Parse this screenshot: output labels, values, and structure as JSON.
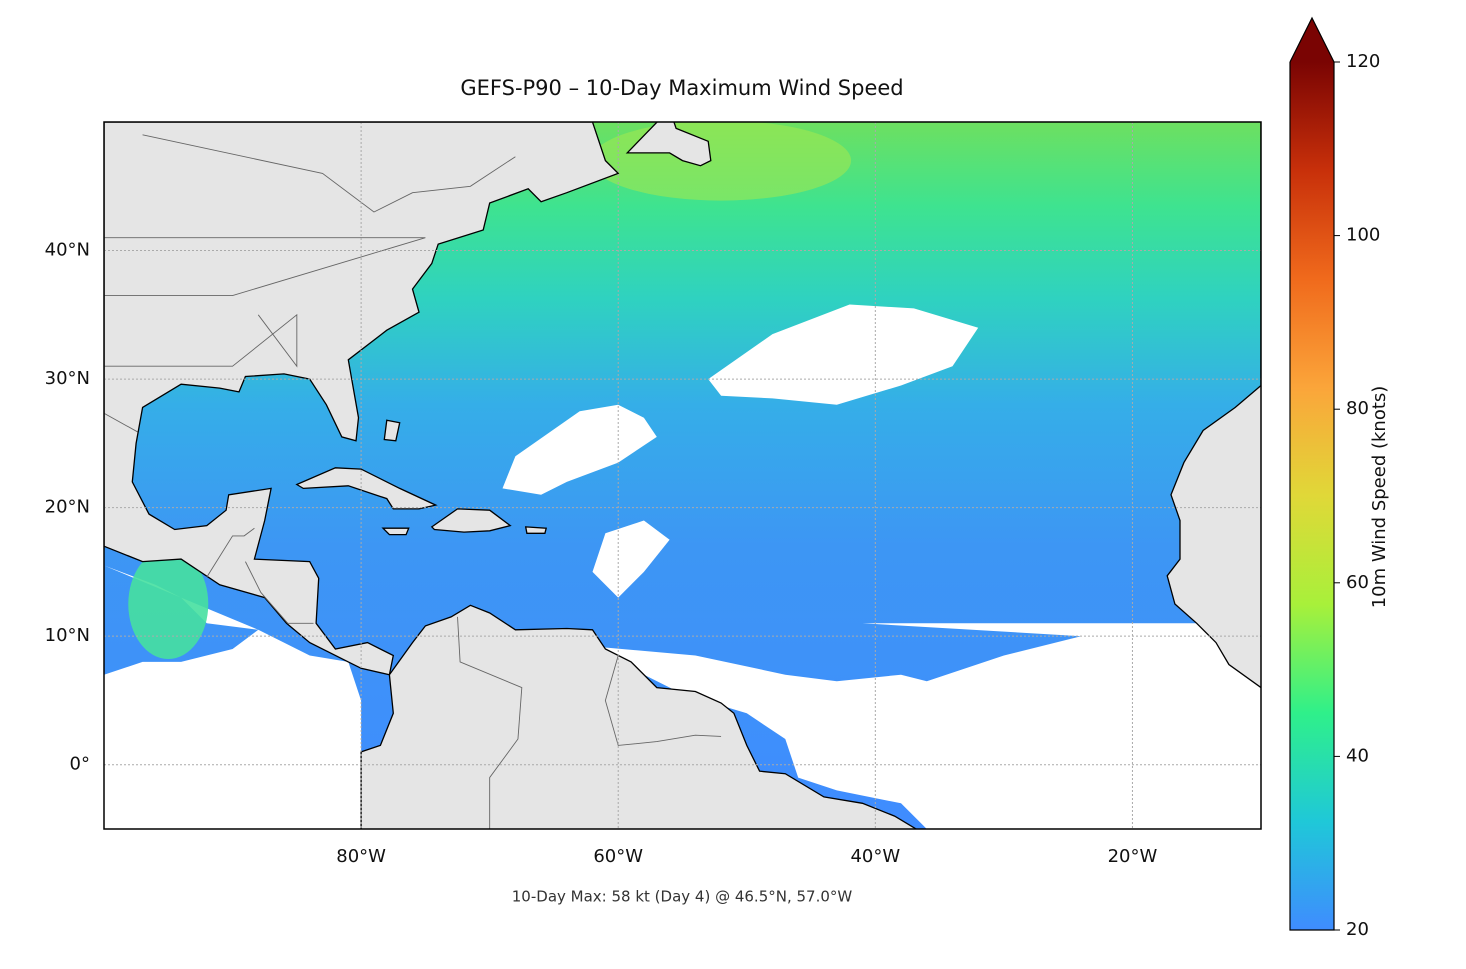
{
  "chart_data": {
    "type": "map",
    "title": "GEFS-P90 – 10-Day Maximum Wind Speed",
    "footnote": "10-Day Max: 58 kt (Day 4) @ 46.5°N, 57.0°W",
    "xlim": [
      -100,
      -10
    ],
    "ylim": [
      -5,
      50
    ],
    "xticks": [
      {
        "value": -80,
        "label": "80°W"
      },
      {
        "value": -60,
        "label": "60°W"
      },
      {
        "value": -40,
        "label": "40°W"
      },
      {
        "value": -20,
        "label": "20°W"
      }
    ],
    "yticks": [
      {
        "value": 0,
        "label": "0°"
      },
      {
        "value": 10,
        "label": "10°N"
      },
      {
        "value": 20,
        "label": "20°N"
      },
      {
        "value": 30,
        "label": "30°N"
      },
      {
        "value": 40,
        "label": "40°N"
      }
    ],
    "grid": true,
    "land_color": "#e5e5e5",
    "colorbar": {
      "label": "10m Wind Speed (knots)",
      "lim": [
        20,
        120
      ],
      "ticks": [
        20,
        40,
        60,
        80,
        100,
        120
      ],
      "extend": "max",
      "colors": [
        "#3f8cff",
        "#1fc8d8",
        "#2ff08a",
        "#a8f03a",
        "#e0d838",
        "#fba53a",
        "#f06a1c",
        "#c8300a",
        "#7a0403"
      ]
    }
  }
}
